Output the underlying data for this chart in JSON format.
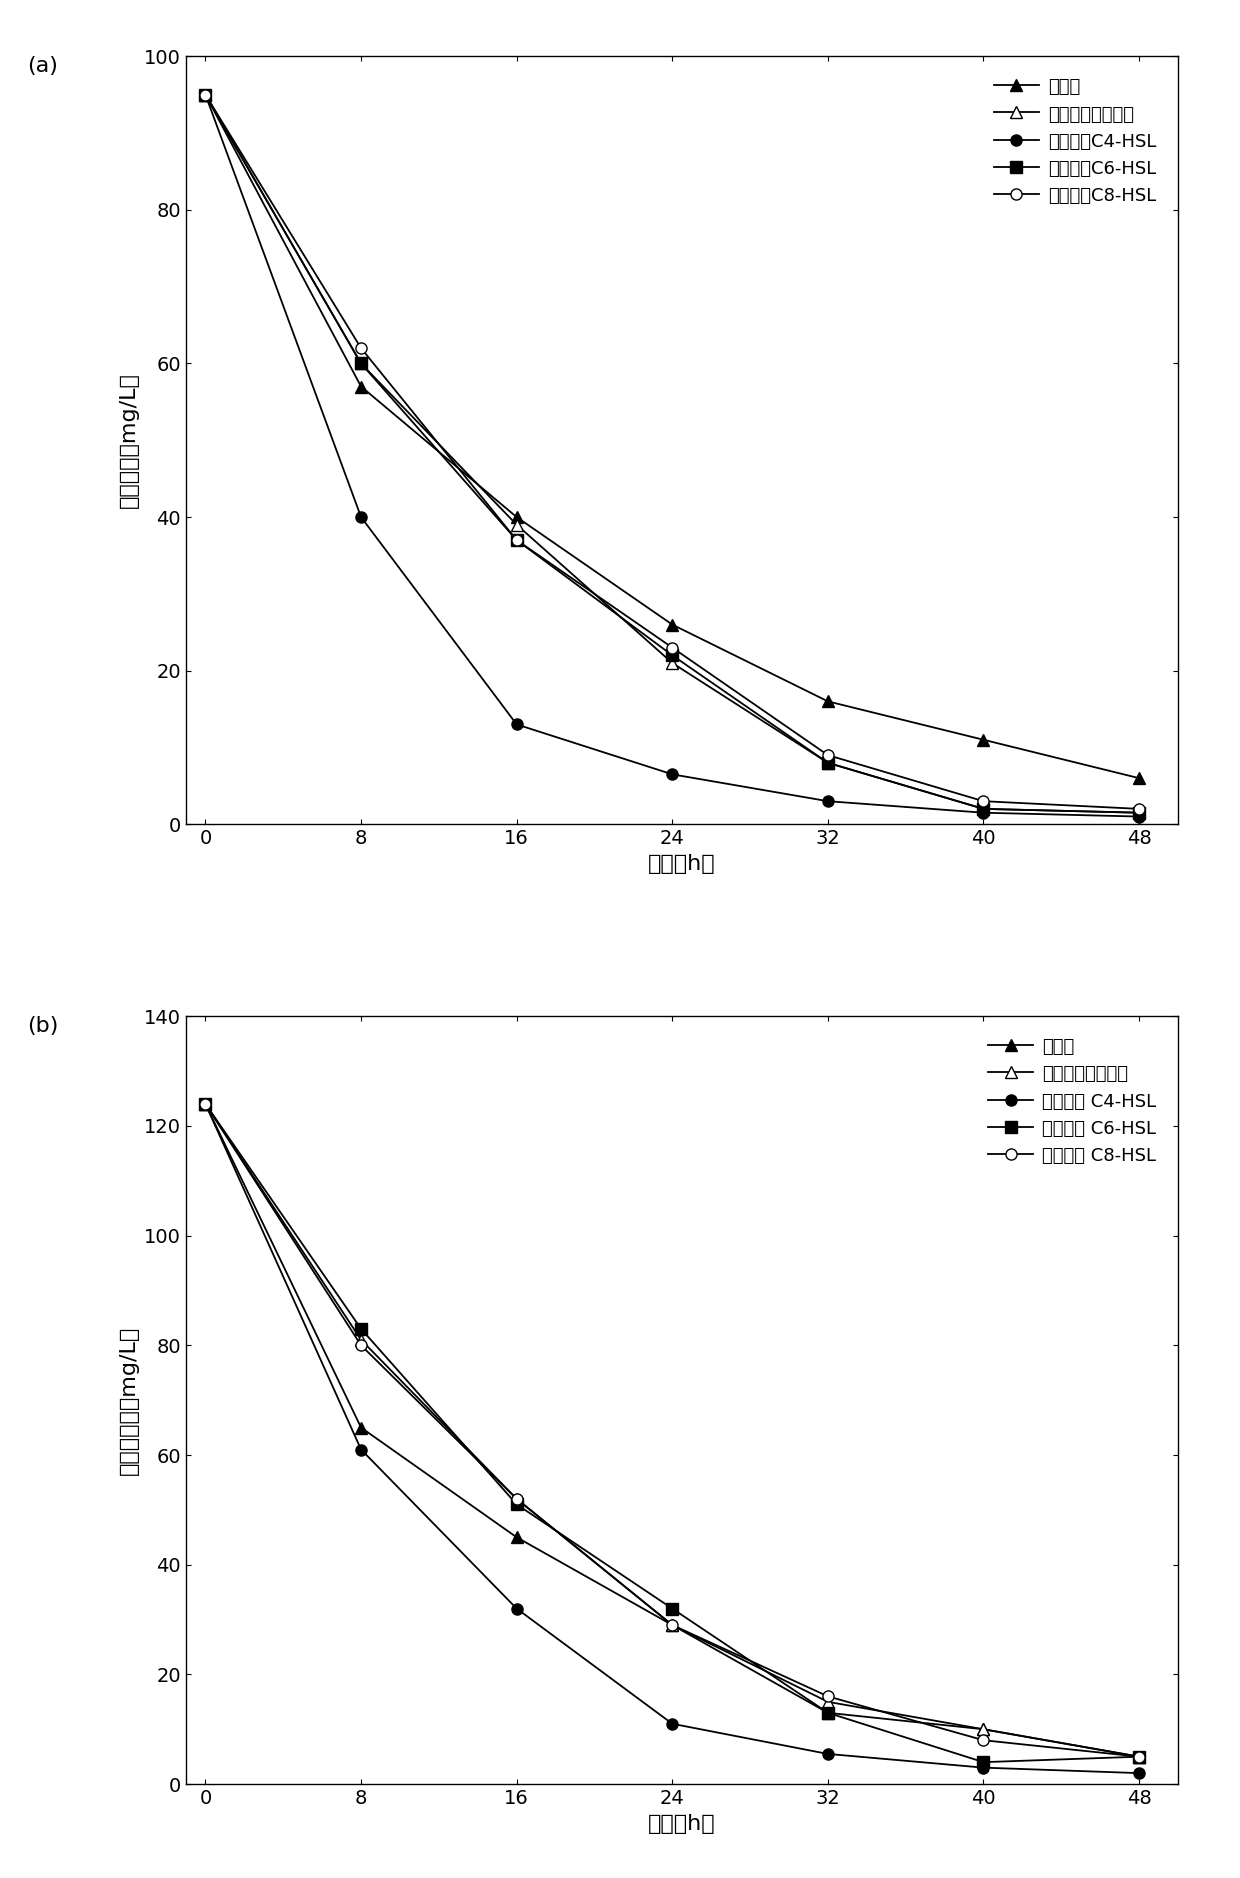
{
  "time": [
    0,
    8,
    16,
    24,
    32,
    40,
    48
  ],
  "panel_a": {
    "panel_label": "(a)",
    "ylabel": "氨氮浓度（mg/L）",
    "xlabel": "时间（h）",
    "ylim": [
      0,
      100
    ],
    "yticks": [
      0,
      20,
      40,
      60,
      80,
      100
    ],
    "series": [
      {
        "label": "未包埋",
        "data": [
          95,
          57,
          40,
          26,
          16,
          11,
          6
        ],
        "marker": "^",
        "markerfacecolor": "black",
        "markeredgecolor": "black",
        "linestyle": "-",
        "color": "black",
        "markersize": 8
      },
      {
        "label": "包埋未加信号分子",
        "data": [
          95,
          60,
          39,
          21,
          8,
          2,
          1.5
        ],
        "marker": "^",
        "markerfacecolor": "white",
        "markeredgecolor": "black",
        "linestyle": "-",
        "color": "black",
        "markersize": 8
      },
      {
        "label": "包埋投加C4-HSL",
        "data": [
          95,
          40,
          13,
          6.5,
          3,
          1.5,
          1
        ],
        "marker": "o",
        "markerfacecolor": "black",
        "markeredgecolor": "black",
        "linestyle": "-",
        "color": "black",
        "markersize": 8
      },
      {
        "label": "包埋投加C6-HSL",
        "data": [
          95,
          60,
          37,
          22,
          8,
          2,
          1.5
        ],
        "marker": "s",
        "markerfacecolor": "black",
        "markeredgecolor": "black",
        "linestyle": "-",
        "color": "black",
        "markersize": 8
      },
      {
        "label": "包埋投加C8-HSL",
        "data": [
          95,
          62,
          37,
          23,
          9,
          3,
          2
        ],
        "marker": "o",
        "markerfacecolor": "white",
        "markeredgecolor": "black",
        "linestyle": "-",
        "color": "black",
        "markersize": 8
      }
    ]
  },
  "panel_b": {
    "panel_label": "(b)",
    "ylabel": "亚硝氮浓度（mg/L）",
    "xlabel": "时间（h）",
    "ylim": [
      0,
      140
    ],
    "yticks": [
      0,
      20,
      40,
      60,
      80,
      100,
      120,
      140
    ],
    "series": [
      {
        "label": "未包埋",
        "data": [
          124,
          65,
          45,
          29,
          13,
          10,
          5
        ],
        "marker": "^",
        "markerfacecolor": "black",
        "markeredgecolor": "black",
        "linestyle": "-",
        "color": "black",
        "markersize": 8
      },
      {
        "label": "包埋未加信号分子",
        "data": [
          124,
          81,
          52,
          29,
          15,
          10,
          5
        ],
        "marker": "^",
        "markerfacecolor": "white",
        "markeredgecolor": "black",
        "linestyle": "-",
        "color": "black",
        "markersize": 8
      },
      {
        "label": "包埋投加 C4-HSL",
        "data": [
          124,
          61,
          32,
          11,
          5.5,
          3,
          2
        ],
        "marker": "o",
        "markerfacecolor": "black",
        "markeredgecolor": "black",
        "linestyle": "-",
        "color": "black",
        "markersize": 8
      },
      {
        "label": "包埋投加 C6-HSL",
        "data": [
          124,
          83,
          51,
          32,
          13,
          4,
          5
        ],
        "marker": "s",
        "markerfacecolor": "black",
        "markeredgecolor": "black",
        "linestyle": "-",
        "color": "black",
        "markersize": 8
      },
      {
        "label": "包埋投加 C8-HSL",
        "data": [
          124,
          80,
          52,
          29,
          16,
          8,
          5
        ],
        "marker": "o",
        "markerfacecolor": "white",
        "markeredgecolor": "black",
        "linestyle": "-",
        "color": "black",
        "markersize": 8
      }
    ]
  },
  "background_color": "#ffffff",
  "font_size_label": 16,
  "font_size_tick": 14,
  "font_size_legend": 13,
  "font_size_panel_label": 16,
  "linewidth": 1.3
}
